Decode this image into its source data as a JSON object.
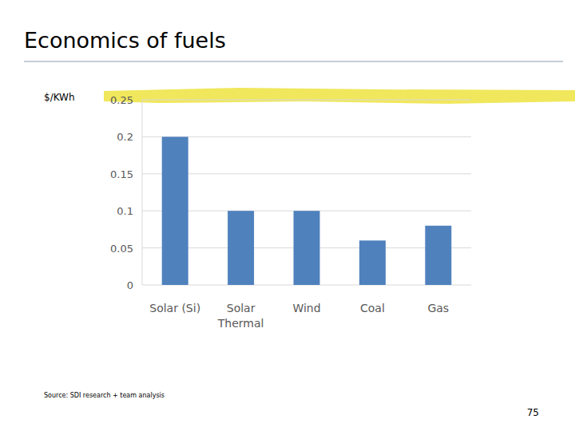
{
  "chart_data": {
    "type": "bar",
    "title": "Economics of fuels",
    "y_label": "$/KWh",
    "categories": [
      "Solar (Si)",
      "Solar Thermal",
      "Wind",
      "Coal",
      "Gas"
    ],
    "values": [
      0.2,
      0.1,
      0.1,
      0.06,
      0.08
    ],
    "color": "#4f81bd",
    "ylim": [
      0,
      0.25
    ],
    "yticks": [
      0,
      0.05,
      0.1,
      0.15,
      0.2,
      0.25
    ],
    "grid": true,
    "source": "Source: SDI research + team analysis",
    "page_number": "75"
  }
}
